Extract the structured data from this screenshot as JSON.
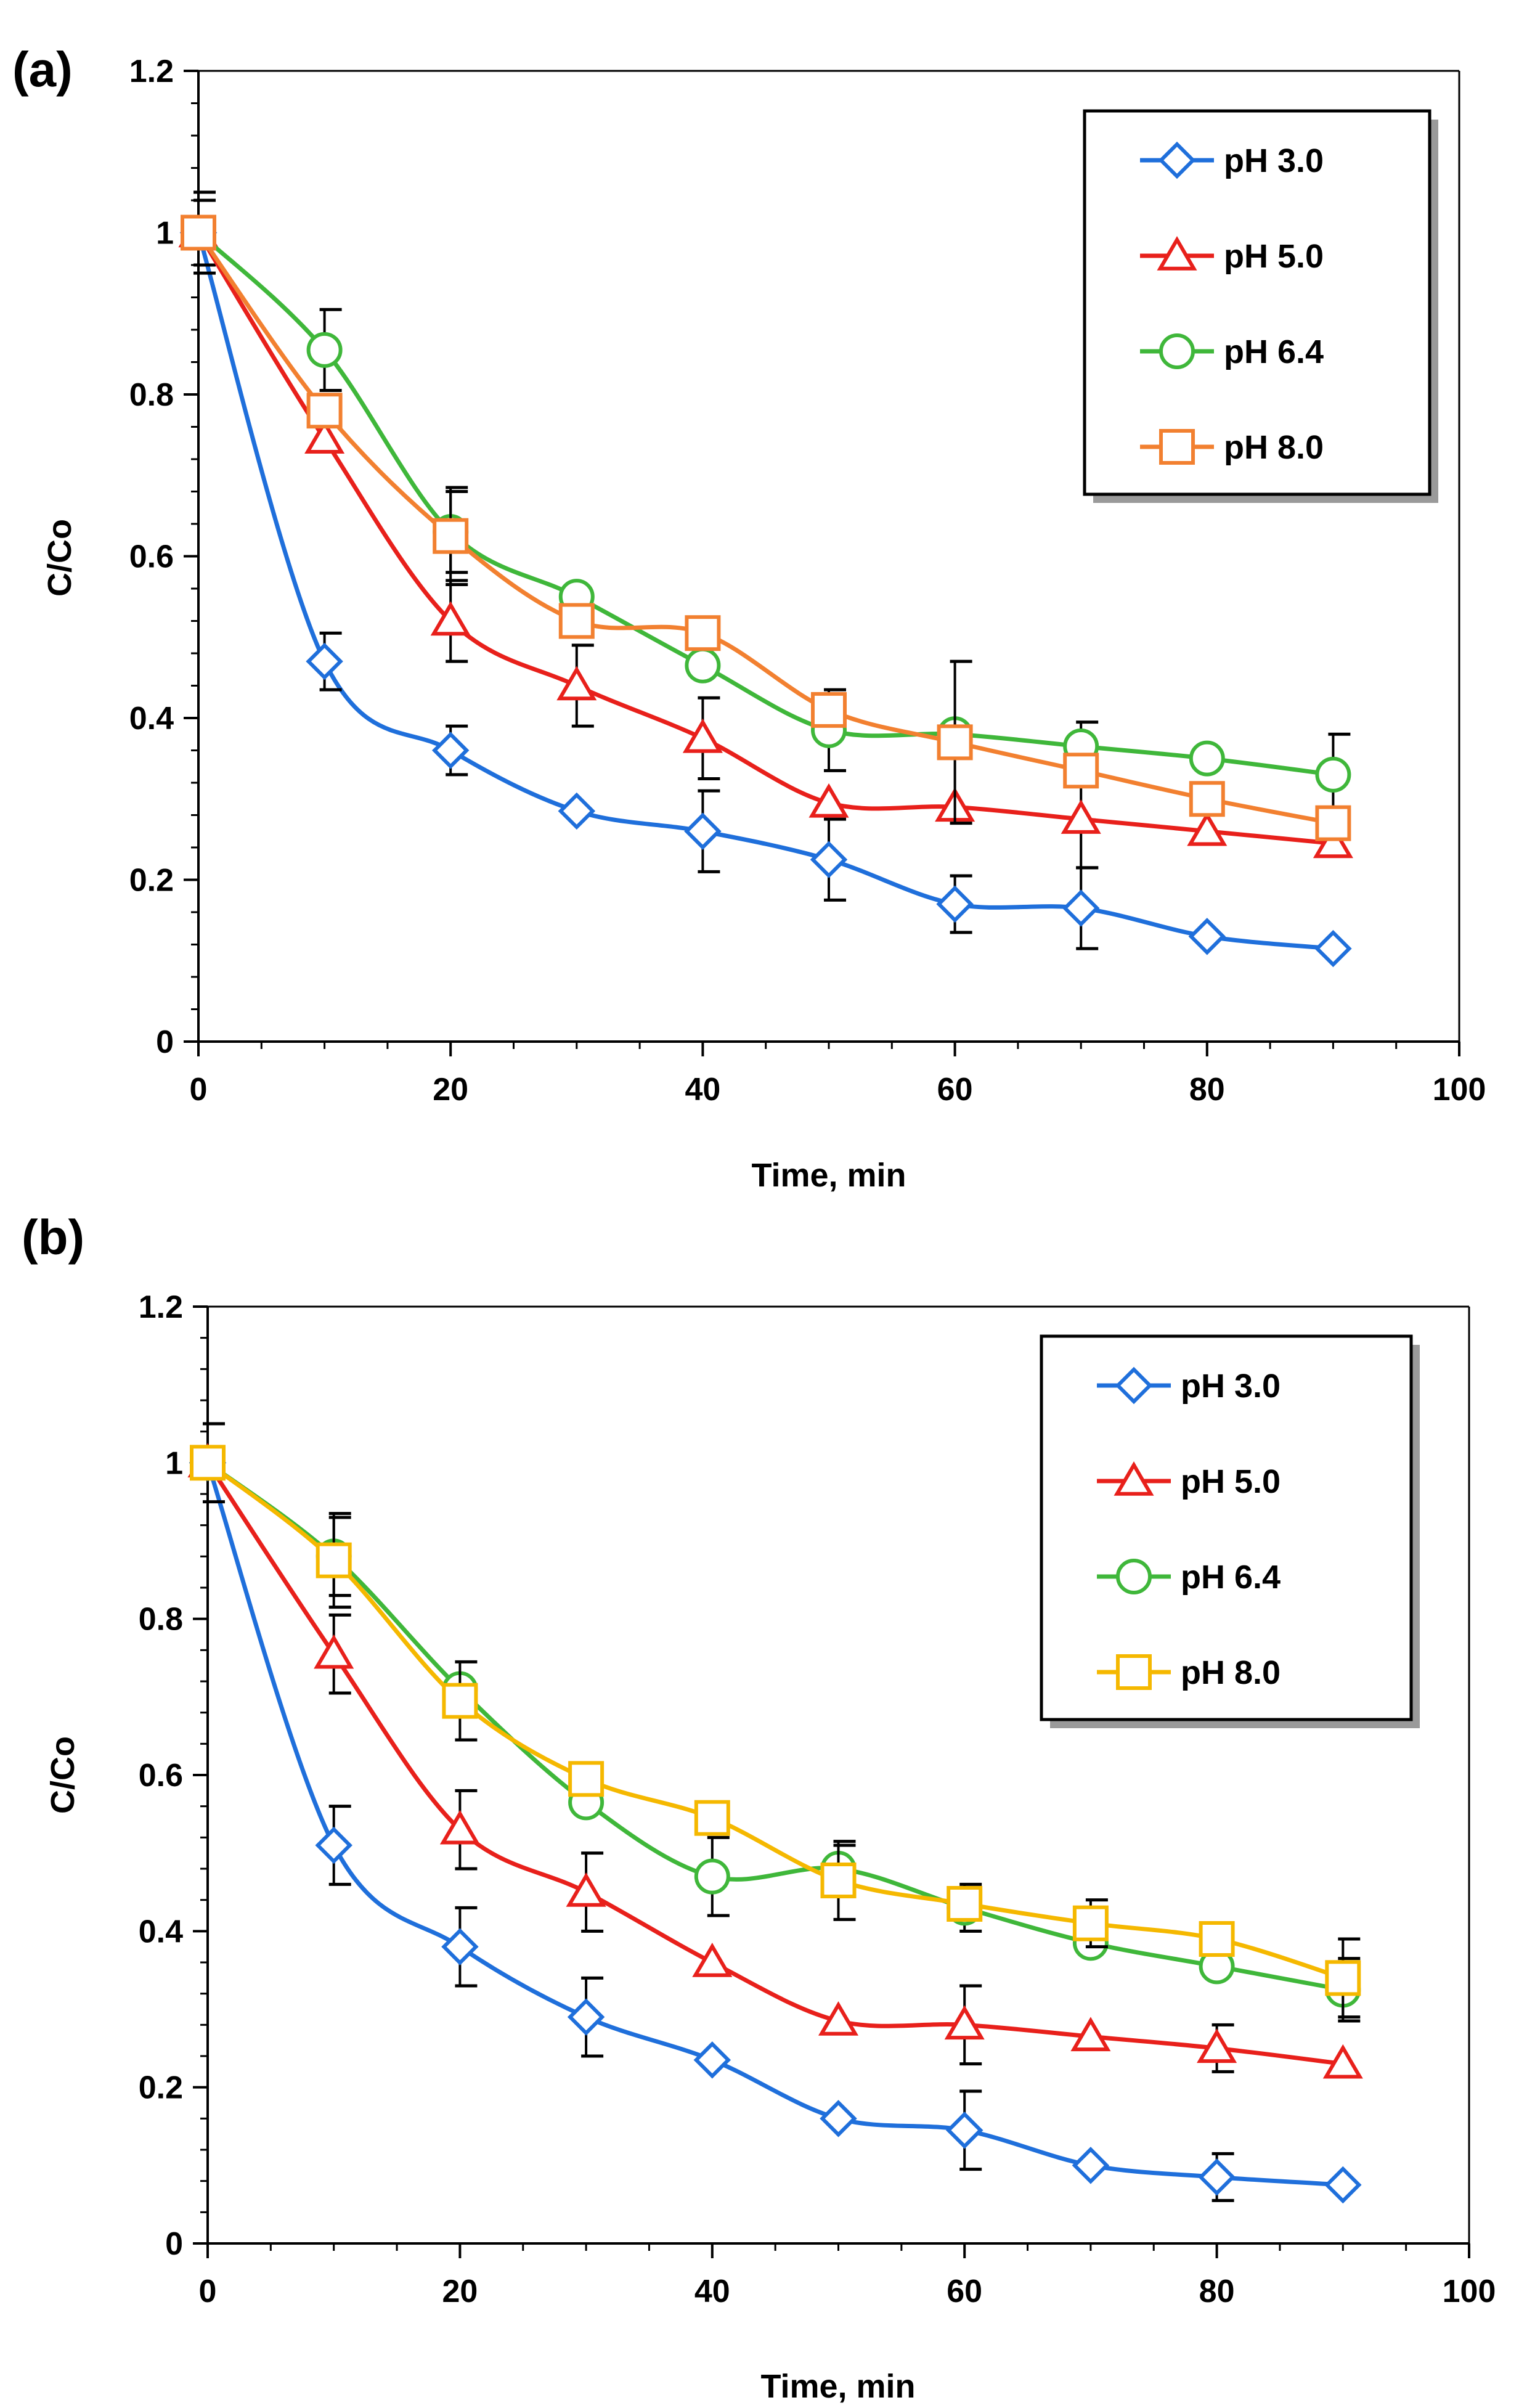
{
  "chart_data": [
    {
      "type": "line",
      "panel_label": "(a)",
      "xlabel": "Time, min",
      "ylabel": "C/Co",
      "xlim": [
        0,
        100
      ],
      "ylim": [
        0,
        1.2
      ],
      "xticks": [
        0,
        20,
        40,
        60,
        80,
        100
      ],
      "xtick_labels": [
        "0",
        "20",
        "40",
        "60",
        "80",
        "100"
      ],
      "yticks": [
        0,
        0.2,
        0.4,
        0.6,
        0.8,
        1,
        1.2
      ],
      "ytick_labels": [
        "0",
        "0.2",
        "0.4",
        "0.6",
        "0.8",
        "1",
        "1.2"
      ],
      "legend_position": "top-right",
      "x": [
        0,
        10,
        20,
        30,
        40,
        50,
        60,
        70,
        80,
        90
      ],
      "series": [
        {
          "name": "pH 3.0",
          "marker": "diamond",
          "color": "#1f6fdb",
          "values": [
            1.0,
            0.47,
            0.36,
            0.285,
            0.26,
            0.225,
            0.17,
            0.165,
            0.13,
            0.115
          ],
          "errors": [
            0.04,
            0.035,
            0.03,
            0.0,
            0.05,
            0.05,
            0.035,
            0.05,
            0.0,
            0.0
          ]
        },
        {
          "name": "pH 5.0",
          "marker": "triangle",
          "color": "#e8201b",
          "values": [
            1.0,
            0.745,
            0.52,
            0.44,
            0.375,
            0.295,
            0.29,
            0.275,
            0.26,
            0.245
          ],
          "errors": [
            0.0,
            0.0,
            0.05,
            0.05,
            0.05,
            0.0,
            0.0,
            0.06,
            0.0,
            0.0
          ]
        },
        {
          "name": "pH 6.4",
          "marker": "circle",
          "color": "#3fb73a",
          "values": [
            1.0,
            0.855,
            0.63,
            0.55,
            0.465,
            0.385,
            0.38,
            0.365,
            0.35,
            0.33
          ],
          "errors": [
            0.0,
            0.05,
            0.05,
            0.0,
            0.0,
            0.05,
            0.0,
            0.03,
            0.0,
            0.05
          ]
        },
        {
          "name": "pH 8.0",
          "marker": "square",
          "color": "#f28030",
          "values": [
            1.0,
            0.78,
            0.625,
            0.52,
            0.505,
            0.41,
            0.37,
            0.335,
            0.3,
            0.27
          ],
          "errors": [
            0.05,
            0.0,
            0.06,
            0.0,
            0.0,
            0.0,
            0.1,
            0.0,
            0.0,
            0.0
          ]
        }
      ]
    },
    {
      "type": "line",
      "panel_label": "(b)",
      "xlabel": "Time, min",
      "ylabel": "C/Co",
      "xlim": [
        0,
        100
      ],
      "ylim": [
        0,
        1.2
      ],
      "xticks": [
        0,
        20,
        40,
        60,
        80,
        100
      ],
      "xtick_labels": [
        "0",
        "20",
        "40",
        "60",
        "80",
        "100"
      ],
      "yticks": [
        0,
        0.2,
        0.4,
        0.6,
        0.8,
        1,
        1.2
      ],
      "ytick_labels": [
        "0",
        "0.2",
        "0.4",
        "0.6",
        "0.8",
        "1",
        "1.2"
      ],
      "legend_position": "top-right",
      "x": [
        0,
        10,
        20,
        30,
        40,
        50,
        60,
        70,
        80,
        90
      ],
      "series": [
        {
          "name": "pH 3.0",
          "marker": "diamond",
          "color": "#1f6fdb",
          "values": [
            1.0,
            0.51,
            0.38,
            0.29,
            0.235,
            0.16,
            0.145,
            0.1,
            0.085,
            0.075
          ],
          "errors": [
            0.05,
            0.05,
            0.05,
            0.05,
            0.0,
            0.0,
            0.05,
            0.0,
            0.03,
            0.0
          ]
        },
        {
          "name": "pH 5.0",
          "marker": "triangle",
          "color": "#e8201b",
          "values": [
            1.0,
            0.755,
            0.53,
            0.45,
            0.36,
            0.285,
            0.28,
            0.265,
            0.25,
            0.23
          ],
          "errors": [
            0.0,
            0.05,
            0.05,
            0.05,
            0.0,
            0.0,
            0.05,
            0.0,
            0.03,
            0.0
          ]
        },
        {
          "name": "pH 6.4",
          "marker": "circle",
          "color": "#3fb73a",
          "values": [
            1.0,
            0.88,
            0.71,
            0.565,
            0.47,
            0.48,
            0.43,
            0.385,
            0.355,
            0.325
          ],
          "errors": [
            0.0,
            0.05,
            0.0,
            0.0,
            0.05,
            0.03,
            0.03,
            0.0,
            0.0,
            0.04
          ]
        },
        {
          "name": "pH 8.0",
          "marker": "square",
          "color": "#f5b800",
          "values": [
            1.0,
            0.875,
            0.695,
            0.595,
            0.545,
            0.465,
            0.435,
            0.41,
            0.39,
            0.34
          ],
          "errors": [
            0.0,
            0.06,
            0.05,
            0.0,
            0.0,
            0.05,
            0.0,
            0.03,
            0.0,
            0.05
          ]
        }
      ]
    }
  ]
}
